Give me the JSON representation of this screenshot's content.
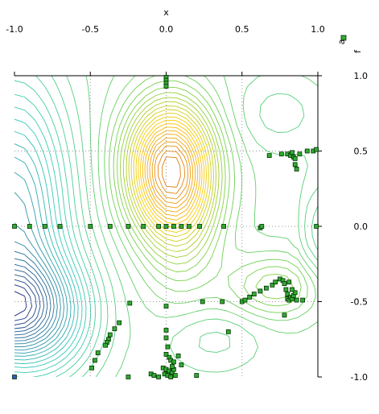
{
  "chart_data": {
    "type": "scatter",
    "title": "",
    "xlabel": "x",
    "ylabel": "f",
    "legend_label": "a",
    "xlim": [
      -1.0,
      1.0
    ],
    "ylim": [
      -1.0,
      1.0
    ],
    "x_ticks": [
      {
        "value": -1.0,
        "label": "-1.0"
      },
      {
        "value": -0.5,
        "label": "-0.5"
      },
      {
        "value": 0.0,
        "label": "0.0"
      },
      {
        "value": 0.5,
        "label": "0.5"
      },
      {
        "value": 1.0,
        "label": "1.0"
      }
    ],
    "y_ticks": [
      {
        "value": 1.0,
        "label": "1.0"
      },
      {
        "value": 0.5,
        "label": "0.5"
      },
      {
        "value": 0.0,
        "label": "0.0"
      },
      {
        "value": -0.5,
        "label": "-0.5"
      },
      {
        "value": -1.0,
        "label": "-1.0"
      }
    ],
    "grid": true,
    "background": "contour lines (blue on the left through green and yellow to orange at top-center)",
    "colors": {
      "contour_low": "#1a237e",
      "contour_mid": "#33ccbb",
      "contour_high": "#ffcc00",
      "contour_peak": "#dd7711",
      "marker_fill": "#33aa33",
      "marker_edge": "#003300",
      "grid": "#999999"
    },
    "series": [
      {
        "points": [
          [
            0.0,
            0.99
          ],
          [
            0.0,
            0.97
          ],
          [
            0.0,
            0.95
          ],
          [
            0.0,
            0.93
          ],
          [
            -1.0,
            0.0
          ],
          [
            -0.9,
            0.0
          ],
          [
            -0.8,
            0.0
          ],
          [
            -0.7,
            0.0
          ],
          [
            -0.5,
            0.0
          ],
          [
            -0.37,
            0.0
          ],
          [
            -0.25,
            0.0
          ],
          [
            -0.15,
            0.0
          ],
          [
            -0.05,
            0.0
          ],
          [
            0.0,
            0.0
          ],
          [
            0.05,
            0.0
          ],
          [
            0.1,
            0.0
          ],
          [
            0.15,
            0.0
          ],
          [
            0.22,
            0.0
          ],
          [
            0.38,
            0.0
          ],
          [
            0.62,
            -0.01
          ],
          [
            0.63,
            0.0
          ],
          [
            0.99,
            0.0
          ],
          [
            0.68,
            0.47
          ],
          [
            0.76,
            0.48
          ],
          [
            0.8,
            0.48
          ],
          [
            0.82,
            0.47
          ],
          [
            0.83,
            0.49
          ],
          [
            0.84,
            0.46
          ],
          [
            0.85,
            0.45
          ],
          [
            0.85,
            0.41
          ],
          [
            0.86,
            0.38
          ],
          [
            0.88,
            0.48
          ],
          [
            0.93,
            0.5
          ],
          [
            0.97,
            0.5
          ],
          [
            0.99,
            0.51
          ],
          [
            0.5,
            -0.5
          ],
          [
            0.52,
            -0.49
          ],
          [
            0.55,
            -0.47
          ],
          [
            0.58,
            -0.45
          ],
          [
            0.62,
            -0.43
          ],
          [
            0.66,
            -0.41
          ],
          [
            0.7,
            -0.39
          ],
          [
            0.72,
            -0.37
          ],
          [
            0.75,
            -0.35
          ],
          [
            0.77,
            -0.36
          ],
          [
            0.78,
            -0.38
          ],
          [
            0.79,
            -0.42
          ],
          [
            0.8,
            -0.45
          ],
          [
            0.8,
            -0.48
          ],
          [
            0.81,
            -0.49
          ],
          [
            0.82,
            -0.47
          ],
          [
            0.83,
            -0.48
          ],
          [
            0.84,
            -0.46
          ],
          [
            0.85,
            -0.44
          ],
          [
            0.86,
            -0.49
          ],
          [
            0.83,
            -0.42
          ],
          [
            0.81,
            -0.37
          ],
          [
            0.78,
            -0.59
          ],
          [
            0.9,
            -0.49
          ],
          [
            -0.24,
            -0.51
          ],
          [
            -0.31,
            -0.64
          ],
          [
            -0.34,
            -0.68
          ],
          [
            -0.37,
            -0.72
          ],
          [
            -0.38,
            -0.75
          ],
          [
            -0.39,
            -0.77
          ],
          [
            -0.4,
            -0.79
          ],
          [
            -0.45,
            -0.84
          ],
          [
            -0.47,
            -0.89
          ],
          [
            -0.49,
            -0.94
          ],
          [
            -0.25,
            -1.0
          ],
          [
            -0.1,
            -0.98
          ],
          [
            -0.05,
            -1.0
          ],
          [
            0.0,
            -0.53
          ],
          [
            0.0,
            -0.69
          ],
          [
            0.0,
            -0.74
          ],
          [
            0.01,
            -0.8
          ],
          [
            0.0,
            -0.85
          ],
          [
            0.02,
            -0.87
          ],
          [
            0.03,
            -0.89
          ],
          [
            0.05,
            -0.9
          ],
          [
            0.08,
            -0.86
          ],
          [
            -0.02,
            -0.94
          ],
          [
            0.0,
            -0.95
          ],
          [
            0.02,
            -0.96
          ],
          [
            0.04,
            -0.97
          ],
          [
            0.05,
            -0.95
          ],
          [
            -0.01,
            -0.98
          ],
          [
            0.01,
            -0.99
          ],
          [
            0.03,
            -1.0
          ],
          [
            0.06,
            -0.99
          ],
          [
            0.1,
            -0.92
          ],
          [
            0.2,
            -0.99
          ],
          [
            -0.08,
            -0.99
          ],
          [
            0.04,
            -0.93
          ],
          [
            0.41,
            -0.7
          ],
          [
            0.24,
            -0.5
          ],
          [
            0.37,
            -0.5
          ],
          [
            -1.0,
            -1.0
          ]
        ]
      }
    ]
  }
}
